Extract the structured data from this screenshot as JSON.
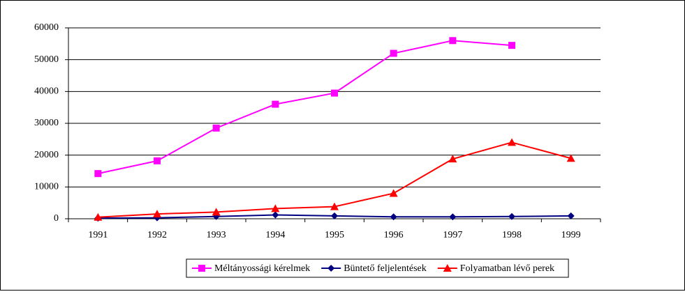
{
  "chart_data": {
    "type": "line",
    "categories": [
      "1991",
      "1992",
      "1993",
      "1994",
      "1995",
      "1996",
      "1997",
      "1998",
      "1999"
    ],
    "series": [
      {
        "name": "Méltányossági kérelmek",
        "color": "#ff00ff",
        "marker": "square",
        "values": [
          14200,
          18200,
          28500,
          36000,
          39500,
          52000,
          56000,
          54500,
          null
        ]
      },
      {
        "name": "Büntető feljelentések",
        "color": "#000080",
        "marker": "diamond",
        "values": [
          200,
          300,
          700,
          1200,
          900,
          600,
          600,
          700,
          900
        ]
      },
      {
        "name": "Folyamatban lévő perek",
        "color": "#ff0000",
        "marker": "triangle",
        "values": [
          500,
          1500,
          2100,
          3200,
          3800,
          8000,
          18800,
          24000,
          19000
        ]
      }
    ],
    "ylim": [
      0,
      60000
    ],
    "yticks": [
      0,
      10000,
      20000,
      30000,
      40000,
      50000,
      60000
    ],
    "grid": true,
    "legend": "bottom"
  }
}
